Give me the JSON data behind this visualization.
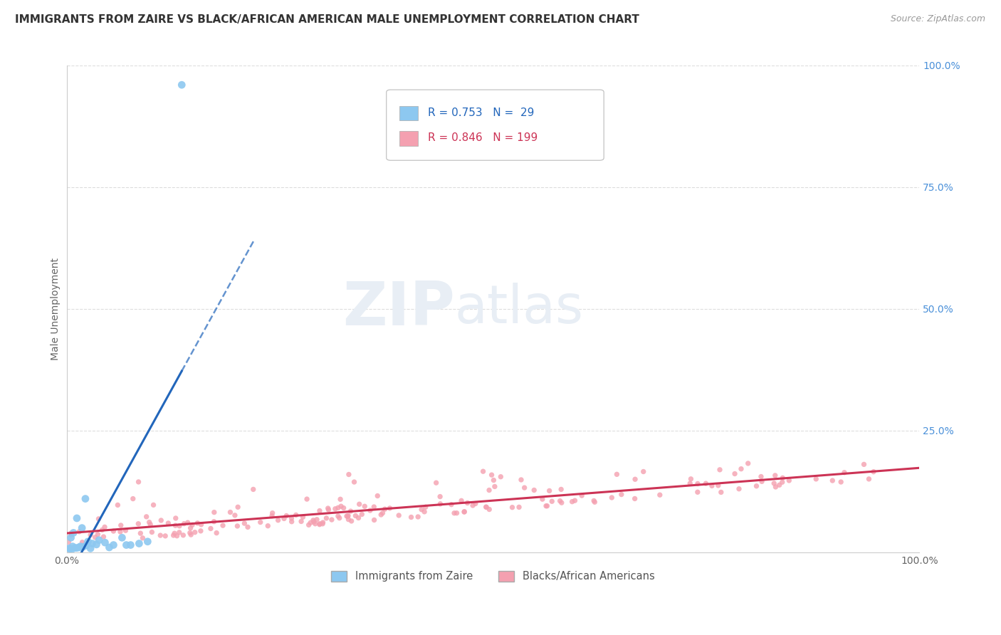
{
  "title": "IMMIGRANTS FROM ZAIRE VS BLACK/AFRICAN AMERICAN MALE UNEMPLOYMENT CORRELATION CHART",
  "source": "Source: ZipAtlas.com",
  "ylabel": "Male Unemployment",
  "blue_R": 0.753,
  "blue_N": 29,
  "pink_R": 0.846,
  "pink_N": 199,
  "blue_color": "#8dc8f0",
  "pink_color": "#f4a0b0",
  "blue_line_color": "#2266bb",
  "pink_line_color": "#cc3355",
  "blue_label": "Immigrants from Zaire",
  "pink_label": "Blacks/African Americans",
  "background_color": "#ffffff",
  "right_tick_color": "#4a90d9",
  "watermark_color": "#e8eef5"
}
